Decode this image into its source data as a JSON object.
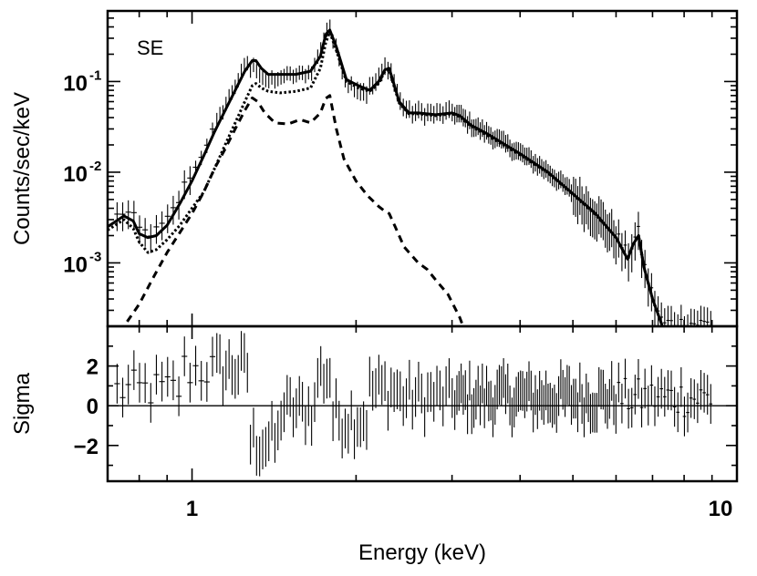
{
  "chart_data": [
    {
      "type": "line",
      "panel": "top",
      "annotation": "SE",
      "ylabel": "Counts/sec/keV",
      "xscale": "log",
      "yscale": "log",
      "xlim": [
        0.7,
        10
      ],
      "ylim": [
        0.0002,
        0.6
      ],
      "y_ticks": [
        0.001,
        0.01,
        0.1
      ],
      "y_tick_mantissa": [
        "10",
        "10",
        "10"
      ],
      "y_tick_exponents": [
        "-3",
        "-2",
        "-1"
      ],
      "series": [
        {
          "style": "solid",
          "x": [
            0.7,
            0.75,
            0.78,
            0.8,
            0.83,
            0.86,
            0.9,
            0.95,
            1.0,
            1.05,
            1.1,
            1.15,
            1.2,
            1.25,
            1.29,
            1.31,
            1.34,
            1.38,
            1.45,
            1.55,
            1.65,
            1.72,
            1.76,
            1.79,
            1.84,
            1.92,
            2.02,
            2.12,
            2.2,
            2.26,
            2.3,
            2.34,
            2.4,
            2.5,
            2.6,
            2.8,
            3.0,
            3.1,
            3.25,
            3.5,
            4.0,
            4.5,
            5.0,
            5.5,
            6.0,
            6.3,
            6.45,
            6.6,
            6.75,
            7.0,
            7.3
          ],
          "y": [
            0.0025,
            0.0033,
            0.0029,
            0.0021,
            0.0019,
            0.002,
            0.0026,
            0.0045,
            0.008,
            0.015,
            0.028,
            0.048,
            0.08,
            0.13,
            0.17,
            0.17,
            0.14,
            0.12,
            0.12,
            0.12,
            0.13,
            0.19,
            0.33,
            0.37,
            0.24,
            0.105,
            0.09,
            0.08,
            0.1,
            0.135,
            0.14,
            0.1,
            0.06,
            0.045,
            0.045,
            0.043,
            0.045,
            0.042,
            0.033,
            0.026,
            0.016,
            0.01,
            0.0058,
            0.0035,
            0.0019,
            0.0011,
            0.0016,
            0.002,
            0.0009,
            0.0004,
            0.0002
          ]
        },
        {
          "style": "dotted",
          "x": [
            0.7,
            0.75,
            0.78,
            0.8,
            0.83,
            0.86,
            0.9,
            0.95,
            1.0,
            1.05,
            1.1,
            1.15,
            1.2,
            1.25,
            1.29,
            1.31,
            1.34,
            1.38,
            1.45,
            1.55,
            1.65,
            1.72,
            1.76,
            1.79,
            1.84,
            1.92,
            2.02,
            2.12,
            2.2,
            2.26,
            2.3,
            2.34,
            2.4,
            2.5,
            2.6,
            2.8,
            3.0,
            3.1,
            3.25,
            3.5,
            4.0,
            4.5,
            5.0,
            5.5,
            6.0,
            6.3,
            6.45,
            6.6,
            6.75,
            7.0,
            7.3
          ],
          "y": [
            0.0023,
            0.003,
            0.0024,
            0.0017,
            0.0013,
            0.0014,
            0.0018,
            0.0026,
            0.004,
            0.006,
            0.011,
            0.02,
            0.035,
            0.06,
            0.09,
            0.095,
            0.085,
            0.078,
            0.075,
            0.078,
            0.085,
            0.14,
            0.27,
            0.35,
            0.22,
            0.1,
            0.085,
            0.078,
            0.095,
            0.13,
            0.135,
            0.095,
            0.058,
            0.044,
            0.044,
            0.042,
            0.044,
            0.041,
            0.032,
            0.025,
            0.0155,
            0.0098,
            0.0057,
            0.0034,
            0.0019,
            0.0011,
            0.0016,
            0.002,
            0.0009,
            0.0004,
            0.0002
          ]
        },
        {
          "style": "dashed",
          "x": [
            0.7,
            0.75,
            0.8,
            0.85,
            0.9,
            1.0,
            1.05,
            1.1,
            1.15,
            1.2,
            1.25,
            1.29,
            1.32,
            1.36,
            1.42,
            1.5,
            1.58,
            1.65,
            1.72,
            1.76,
            1.79,
            1.84,
            1.9,
            2.0,
            2.1,
            2.2,
            2.26,
            2.3,
            2.36,
            2.45,
            2.6,
            2.7,
            2.8,
            2.95,
            3.1,
            3.2
          ],
          "y": [
            0.00015,
            0.0002,
            0.00035,
            0.0007,
            0.0013,
            0.0035,
            0.006,
            0.011,
            0.018,
            0.03,
            0.048,
            0.066,
            0.06,
            0.045,
            0.035,
            0.034,
            0.038,
            0.035,
            0.045,
            0.065,
            0.07,
            0.03,
            0.014,
            0.008,
            0.0055,
            0.0042,
            0.0037,
            0.0035,
            0.0025,
            0.0015,
            0.001,
            0.00085,
            0.00065,
            0.00045,
            0.00025,
            0.00015
          ]
        }
      ]
    },
    {
      "type": "scatter",
      "panel": "bottom",
      "ylabel": "Sigma",
      "xlabel": "Energy (keV)",
      "xscale": "log",
      "xlim": [
        0.7,
        10
      ],
      "ylim": [
        -3.8,
        4.0
      ],
      "x_ticks": [
        1,
        10
      ],
      "x_tick_labels": [
        "1",
        "10"
      ],
      "y_ticks": [
        2,
        0,
        -2
      ],
      "y_tick_labels": [
        "2",
        "0",
        "−2"
      ],
      "zero_line": true
    }
  ]
}
